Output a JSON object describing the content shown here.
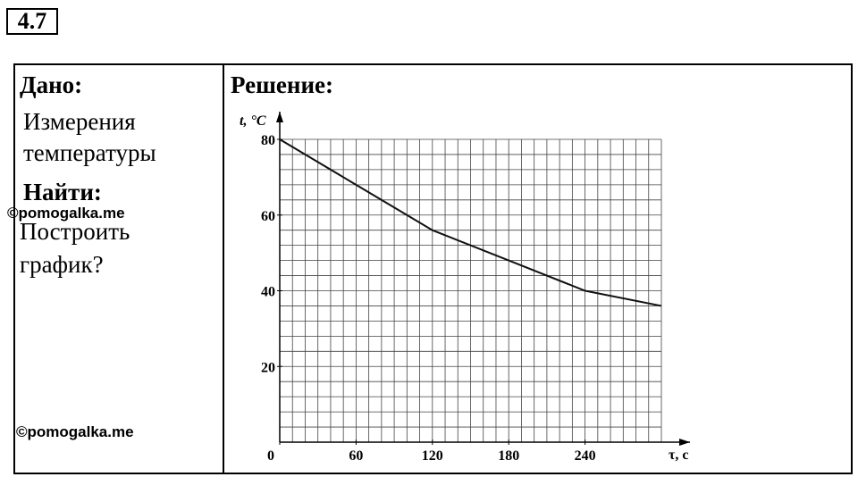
{
  "header": {
    "number": "4.7"
  },
  "given": {
    "title": "Дано:",
    "lines": [
      "Измерения",
      "температуры"
    ]
  },
  "find": {
    "title": "Найти:",
    "lines": [
      "Построить",
      "график?"
    ]
  },
  "solution": {
    "title": "Решение:"
  },
  "watermarks": [
    "©pomogalka.me",
    "©pomogalka.me"
  ],
  "chart_data": {
    "type": "line",
    "xlabel": "τ, с",
    "ylabel": "t, °C",
    "x": [
      0,
      60,
      120,
      180,
      240,
      300
    ],
    "series": [
      {
        "values": [
          80,
          68,
          56,
          48,
          40,
          36
        ],
        "color": "#111111"
      }
    ],
    "xlim": [
      0,
      300
    ],
    "ylim": [
      0,
      80
    ],
    "xticks": [
      0,
      60,
      120,
      180,
      240
    ],
    "yticks": [
      20,
      40,
      60,
      80
    ],
    "grid": true,
    "xgrid_step": 10,
    "ygrid_step": 4
  }
}
